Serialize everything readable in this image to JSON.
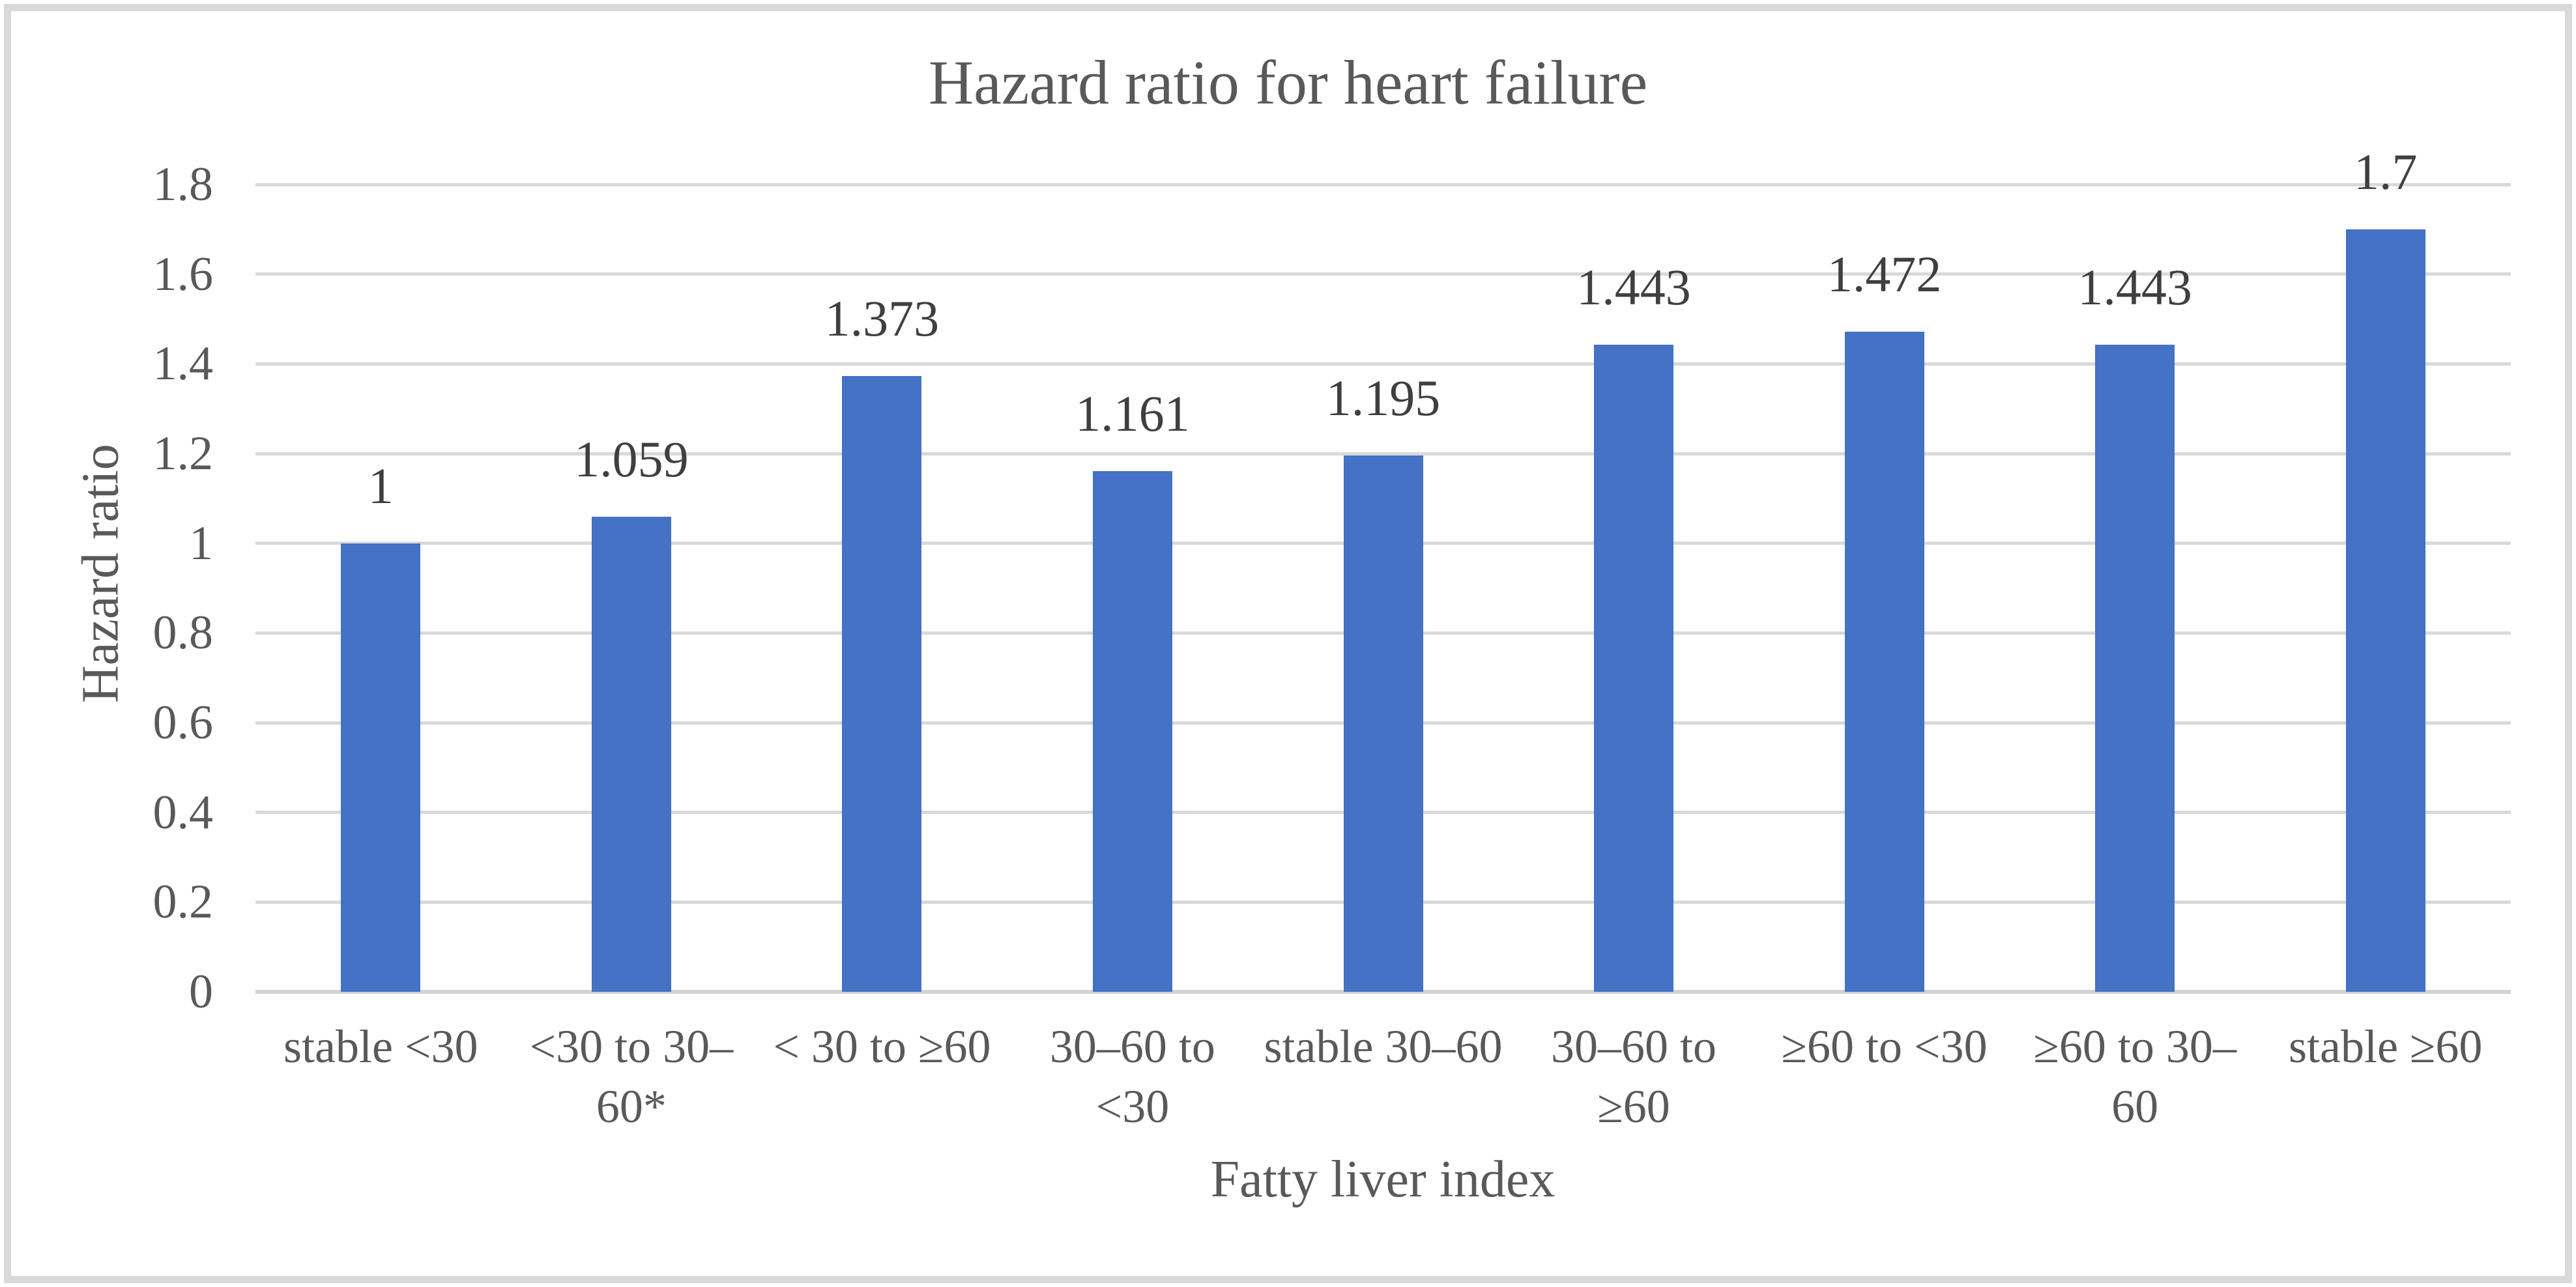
{
  "chart_data": {
    "type": "bar",
    "title": "Hazard ratio for heart failure",
    "xlabel": "Fatty liver index",
    "ylabel": "Hazard ratio",
    "categories": [
      "stable <30",
      "<30 to 30–60*",
      "< 30 to ≥60",
      "30–60 to <30",
      "stable 30–60",
      "30–60 to ≥60",
      "≥60 to <30",
      "≥60 to 30–60",
      "stable ≥60"
    ],
    "category_lines": [
      [
        "stable <30"
      ],
      [
        "<30 to 30–",
        "60*"
      ],
      [
        "< 30 to ≥60"
      ],
      [
        "30–60 to",
        "<30"
      ],
      [
        "stable 30–60"
      ],
      [
        "30–60 to",
        "≥60"
      ],
      [
        "≥60 to <30"
      ],
      [
        "≥60 to 30–",
        "60"
      ],
      [
        "stable ≥60"
      ]
    ],
    "values": [
      1,
      1.059,
      1.373,
      1.161,
      1.195,
      1.443,
      1.472,
      1.443,
      1.7
    ],
    "data_labels": [
      "1",
      "1.059",
      "1.373",
      "1.161",
      "1.195",
      "1.443",
      "1.472",
      "1.443",
      "1.7"
    ],
    "yticks": [
      "0",
      "0.2",
      "0.4",
      "0.6",
      "0.8",
      "1",
      "1.2",
      "1.4",
      "1.6",
      "1.8"
    ],
    "ylim": [
      0,
      1.8
    ],
    "ytick_step": 0.2,
    "grid": true,
    "legend": "none",
    "colors": {
      "bar": "#4472C4",
      "gridline": "#D9D9D9",
      "axis_line": "#D2D2D2",
      "text": "#595959",
      "data_label": "#3F3F3F",
      "frame": "#D9D9D9",
      "background": "#FFFFFF"
    }
  }
}
